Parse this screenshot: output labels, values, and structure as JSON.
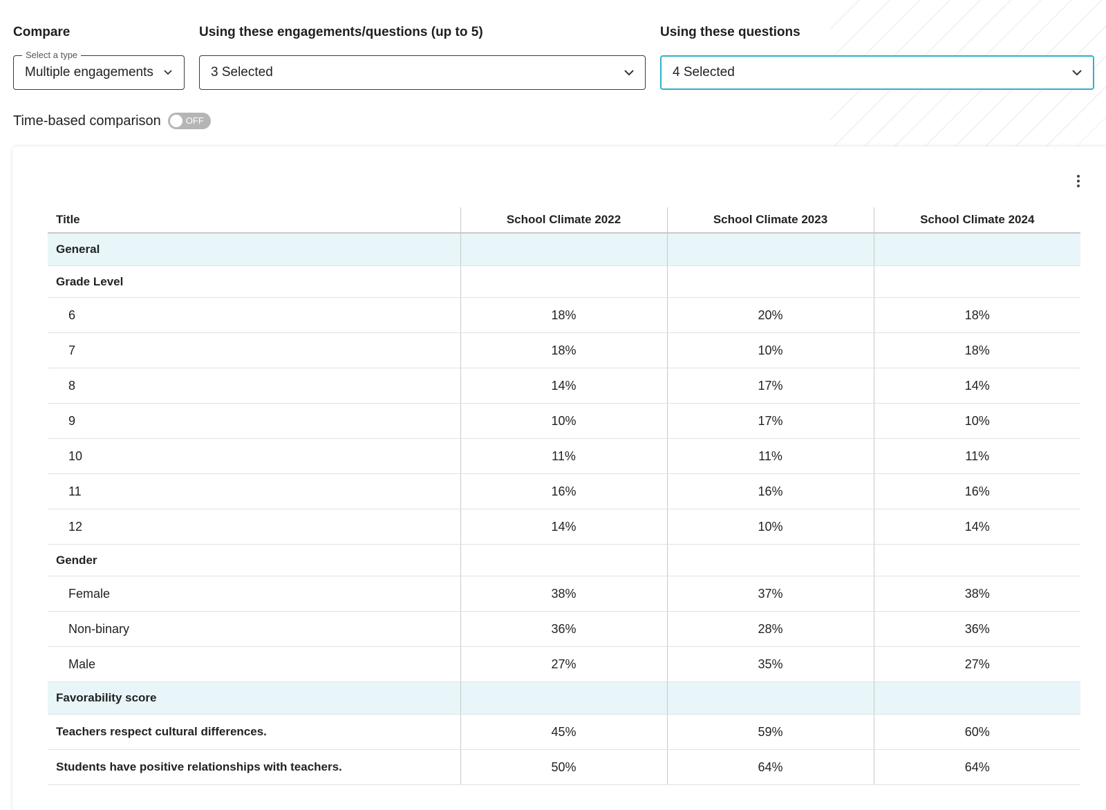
{
  "compare": {
    "label": "Compare",
    "select_legend": "Select a type",
    "select_value": "Multiple engagements"
  },
  "engagements": {
    "label": "Using these engagements/questions (up to 5)",
    "value": "3 Selected"
  },
  "questions": {
    "label": "Using these questions",
    "value": "4 Selected"
  },
  "time_comparison": {
    "label": "Time-based comparison",
    "toggle_state": "OFF"
  },
  "table": {
    "headers": [
      "Title",
      "School Climate 2022",
      "School Climate 2023",
      "School Climate 2024"
    ],
    "rows": [
      {
        "type": "section",
        "title": "General",
        "values": [
          "",
          "",
          ""
        ]
      },
      {
        "type": "group",
        "title": "Grade Level",
        "values": [
          "",
          "",
          ""
        ]
      },
      {
        "type": "item",
        "title": "6",
        "values": [
          "18%",
          "20%",
          "18%"
        ]
      },
      {
        "type": "item",
        "title": "7",
        "values": [
          "18%",
          "10%",
          "18%"
        ]
      },
      {
        "type": "item",
        "title": "8",
        "values": [
          "14%",
          "17%",
          "14%"
        ]
      },
      {
        "type": "item",
        "title": "9",
        "values": [
          "10%",
          "17%",
          "10%"
        ]
      },
      {
        "type": "item",
        "title": "10",
        "values": [
          "11%",
          "11%",
          "11%"
        ]
      },
      {
        "type": "item",
        "title": "11",
        "values": [
          "16%",
          "16%",
          "16%"
        ]
      },
      {
        "type": "item",
        "title": "12",
        "values": [
          "14%",
          "10%",
          "14%"
        ]
      },
      {
        "type": "group",
        "title": "Gender",
        "values": [
          "",
          "",
          ""
        ]
      },
      {
        "type": "item",
        "title": "Female",
        "values": [
          "38%",
          "37%",
          "38%"
        ]
      },
      {
        "type": "item",
        "title": "Non-binary",
        "values": [
          "36%",
          "28%",
          "36%"
        ]
      },
      {
        "type": "item",
        "title": "Male",
        "values": [
          "27%",
          "35%",
          "27%"
        ]
      },
      {
        "type": "section",
        "title": "Favorability score",
        "values": [
          "",
          "",
          ""
        ]
      },
      {
        "type": "q",
        "title": "Teachers respect cultural differences.",
        "values": [
          "45%",
          "59%",
          "60%"
        ]
      },
      {
        "type": "q",
        "title": "Students have positive relationships with teachers.",
        "values": [
          "50%",
          "64%",
          "64%"
        ]
      }
    ]
  },
  "colors": {
    "focus_border": "#2bb3c8",
    "section_bg": "#e8f6f9",
    "toggle_off": "#b5b5b5"
  },
  "icons": {
    "dropdown": "chevron-down-icon",
    "menu": "more-vert-icon"
  }
}
